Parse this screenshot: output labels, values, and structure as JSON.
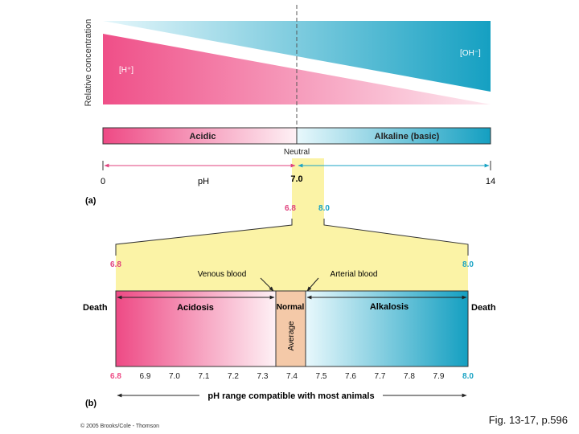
{
  "panel_a": {
    "label": "(a)",
    "y_axis_label": "Relative concentration",
    "h_label": "[H⁺]",
    "oh_label": "[OH⁻]",
    "acidic_label": "Acidic",
    "alkaline_label": "Alkaline (basic)",
    "neutral_label": "Neutral",
    "ph_label": "pH",
    "scale_min": "0",
    "scale_neutral": "7.0",
    "scale_max": "14",
    "window_low": "6.8",
    "window_high": "8.0"
  },
  "panel_b": {
    "label": "(b)",
    "venous_label": "Venous blood",
    "arterial_label": "Arterial blood",
    "death_left": "Death",
    "death_right": "Death",
    "acidosis_label": "Acidosis",
    "normal_label": "Normal",
    "average_label": "Average",
    "alkalosis_label": "Alkalosis",
    "range_low": "6.8",
    "range_high": "8.0",
    "ticks": [
      "6.8",
      "6.9",
      "7.0",
      "7.1",
      "7.2",
      "7.3",
      "7.4",
      "7.5",
      "7.6",
      "7.7",
      "7.8",
      "7.9",
      "8.0"
    ],
    "range_caption": "pH range compatible with most animals"
  },
  "colors": {
    "acid": "#ee4d86",
    "base": "#1aa3c4",
    "yellow": "#fbf3a6",
    "normal_box": "#f4c9a8"
  },
  "footer": {
    "credit": "© 2005 Brooks/Cole - Thomson",
    "figure_ref": "Fig. 13-17, p.596"
  }
}
